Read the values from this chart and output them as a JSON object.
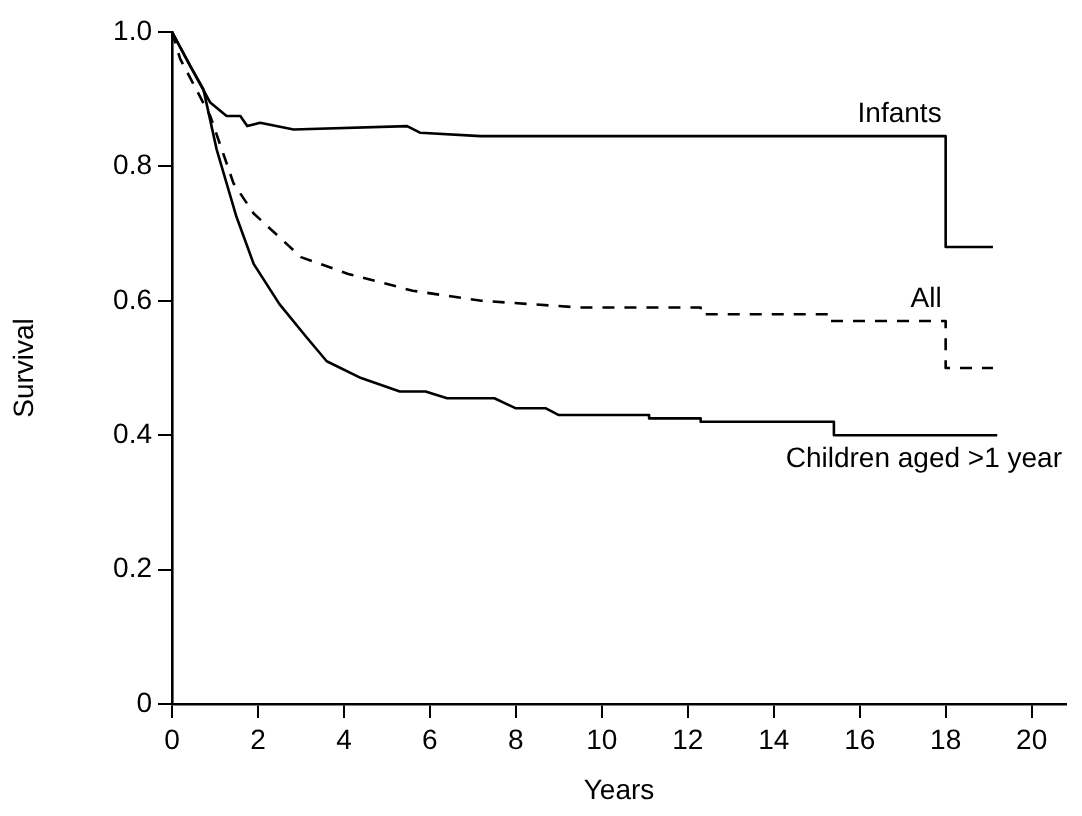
{
  "chart_data": {
    "type": "line",
    "xlabel": "Years",
    "ylabel": "Survival",
    "xlim": [
      0,
      20.8
    ],
    "xticks": [
      0,
      2,
      4,
      6,
      8,
      10,
      12,
      14,
      16,
      18,
      20
    ],
    "ylim": [
      0,
      1
    ],
    "yticks": [
      0,
      {
        "value": 0.2,
        "label": "0.2"
      },
      {
        "value": 0.4,
        "label": "0.4"
      },
      {
        "value": 0.6,
        "label": "0.6"
      },
      {
        "value": 0.8,
        "label": "0.8"
      },
      {
        "value": 1,
        "label": "1.0"
      }
    ],
    "grid": false,
    "legend": false,
    "marker": "none",
    "series": [
      {
        "name": "Infants",
        "color": "#000000",
        "line_style": "solid",
        "x": [
          0,
          0.42,
          0.89,
          1.27,
          1.59,
          1.75,
          2.05,
          2.83,
          5.47,
          5.78,
          7.18,
          9.5,
          18.0,
          18.0,
          19.1
        ],
        "values": [
          1,
          0.95,
          0.895,
          0.875,
          0.875,
          0.86,
          0.865,
          0.855,
          0.86,
          0.85,
          0.845,
          0.845,
          0.845,
          0.68,
          0.68
        ]
      },
      {
        "name": "All",
        "color": "#000000",
        "line_style": "dashed",
        "x": [
          0,
          0.19,
          0.89,
          1.43,
          1.9,
          3.0,
          4.1,
          5.6,
          7.2,
          9.5,
          12.3,
          12.3,
          15.3,
          15.3,
          18.0,
          18.0,
          19.1
        ],
        "values": [
          1,
          0.96,
          0.875,
          0.775,
          0.73,
          0.665,
          0.64,
          0.615,
          0.6,
          0.59,
          0.59,
          0.58,
          0.58,
          0.57,
          0.57,
          0.5,
          0.5
        ]
      },
      {
        "name": "Children aged >1 year",
        "color": "#000000",
        "line_style": "solid",
        "x": [
          0,
          0.42,
          0.73,
          1.04,
          1.5,
          1.9,
          2.5,
          3.14,
          3.6,
          4.4,
          5.3,
          5.9,
          6.4,
          7.5,
          8.0,
          8.7,
          9.0,
          11.1,
          11.1,
          12.3,
          12.3,
          15.4,
          15.4,
          19.2
        ],
        "values": [
          1,
          0.95,
          0.915,
          0.825,
          0.725,
          0.655,
          0.595,
          0.545,
          0.51,
          0.485,
          0.465,
          0.465,
          0.455,
          0.455,
          0.44,
          0.44,
          0.43,
          0.43,
          0.425,
          0.425,
          0.42,
          0.42,
          0.4,
          0.4
        ]
      }
    ]
  }
}
